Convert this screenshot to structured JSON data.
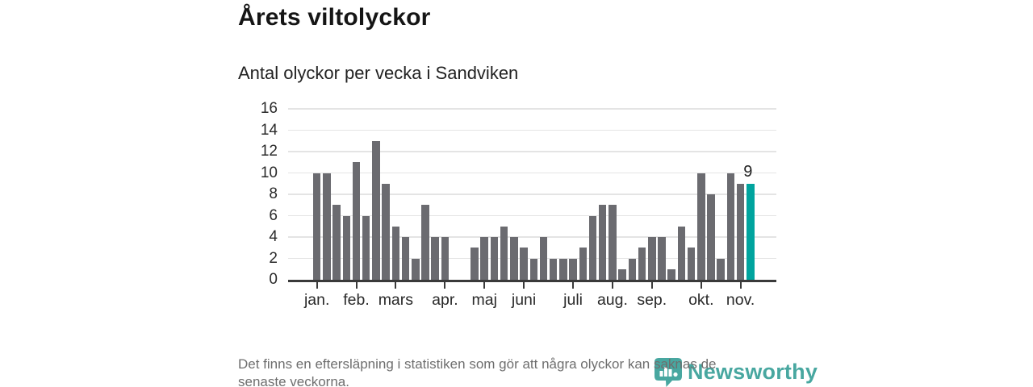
{
  "header": {
    "title": "Årets viltolyckor",
    "subtitle": "Antal olyckor per vecka i Sandviken"
  },
  "chart_data": {
    "type": "bar",
    "title": "Antal olyckor per vecka i Sandviken",
    "xlabel": "",
    "ylabel": "",
    "x_unit": "vecka",
    "values": [
      10,
      10,
      7,
      6,
      11,
      6,
      13,
      9,
      5,
      4,
      2,
      7,
      4,
      4,
      0,
      0,
      3,
      4,
      4,
      5,
      4,
      3,
      2,
      4,
      2,
      2,
      2,
      3,
      6,
      7,
      7,
      1,
      2,
      3,
      4,
      4,
      1,
      5,
      3,
      10,
      8,
      2,
      10,
      9,
      9
    ],
    "highlight_index": 44,
    "highlight_value_label": "9",
    "ylim": [
      0,
      16
    ],
    "y_ticks": [
      0,
      2,
      4,
      6,
      8,
      10,
      12,
      14,
      16
    ],
    "grid": "horizontal",
    "legend": "none",
    "month_ticks": [
      {
        "label": "jan.",
        "bar_index": 0
      },
      {
        "label": "feb.",
        "bar_index": 4
      },
      {
        "label": "mars",
        "bar_index": 8
      },
      {
        "label": "apr.",
        "bar_index": 13
      },
      {
        "label": "maj",
        "bar_index": 17
      },
      {
        "label": "juni",
        "bar_index": 21
      },
      {
        "label": "juli",
        "bar_index": 26
      },
      {
        "label": "aug.",
        "bar_index": 30
      },
      {
        "label": "sep.",
        "bar_index": 34
      },
      {
        "label": "okt.",
        "bar_index": 39
      },
      {
        "label": "nov.",
        "bar_index": 43
      }
    ],
    "colors": {
      "bar": "#6b6b70",
      "highlight": "#00a49e",
      "axis": "#3a3a3a",
      "gridline": "#e4e4e4",
      "tick_label": "#2a2a2a"
    }
  },
  "footnote": {
    "lines": [
      "Det finns en eftersläpning i statistiken som gör att några olyckor kan saknas de",
      "senaste veckorna."
    ]
  },
  "logo": {
    "text": "Newsworthy",
    "color": "#2f9c94",
    "icon": "newsworthy-pin-barchart-icon"
  }
}
